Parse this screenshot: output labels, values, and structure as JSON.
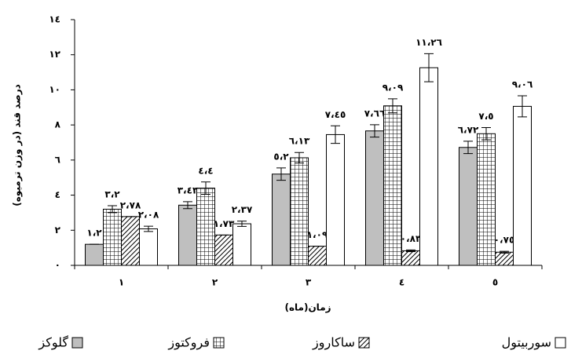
{
  "chart_data": {
    "type": "bar",
    "y_label": "درصد قند (در وزن ترميوه)",
    "x_label": "زمان(ماه)",
    "categories": [
      "١",
      "٢",
      "٣",
      "٤",
      "٥"
    ],
    "ylim": [
      0,
      14
    ],
    "yticks": [
      {
        "value": 0,
        "label": "٠"
      },
      {
        "value": 2,
        "label": "٢"
      },
      {
        "value": 4,
        "label": "٤"
      },
      {
        "value": 6,
        "label": "٦"
      },
      {
        "value": 8,
        "label": "٨"
      },
      {
        "value": 10,
        "label": "١٠"
      },
      {
        "value": 12,
        "label": "١٢"
      },
      {
        "value": 14,
        "label": "١٤"
      }
    ],
    "series": [
      {
        "name": "گلوکز",
        "color": "#bfbfbf",
        "pattern": "solid",
        "values": [
          1.2,
          3.43,
          5.2,
          7.66,
          6.72
        ],
        "value_labels": [
          "١،٢",
          "٣،٤٣",
          "٥،٢",
          "٧،٦٦",
          "٦،٧٢"
        ],
        "errors": [
          0,
          0.2,
          0.35,
          0.35,
          0.35
        ]
      },
      {
        "name": "فروکتوز",
        "color": "#ffffff",
        "pattern": "grid",
        "values": [
          3.2,
          4.4,
          6.13,
          9.09,
          7.5
        ],
        "value_labels": [
          "٣،٢",
          "٤،٤",
          "٦،١٣",
          "٩،٠٩",
          "٧،٥"
        ],
        "errors": [
          0.2,
          0.35,
          0.3,
          0.4,
          0.35
        ]
      },
      {
        "name": "ساکاروز",
        "color": "#ffffff",
        "pattern": "hatch",
        "values": [
          2.78,
          1.73,
          1.09,
          0.83,
          0.75
        ],
        "value_labels": [
          "٢،٧٨",
          "١،٧٣",
          "١،٠٩",
          "٠،٨٣",
          "٠،٧٥"
        ],
        "errors": [
          0,
          0,
          0,
          0.05,
          0.05
        ]
      },
      {
        "name": "سوربيتول",
        "color": "#ffffff",
        "pattern": "none",
        "values": [
          2.08,
          2.37,
          7.45,
          11.26,
          9.06
        ],
        "value_labels": [
          "٢،٠٨",
          "٢،٣٧",
          "٧،٤٥",
          "١١،٢٦",
          "٩،٠٦"
        ],
        "errors": [
          0.15,
          0.15,
          0.5,
          0.8,
          0.6
        ]
      }
    ]
  }
}
